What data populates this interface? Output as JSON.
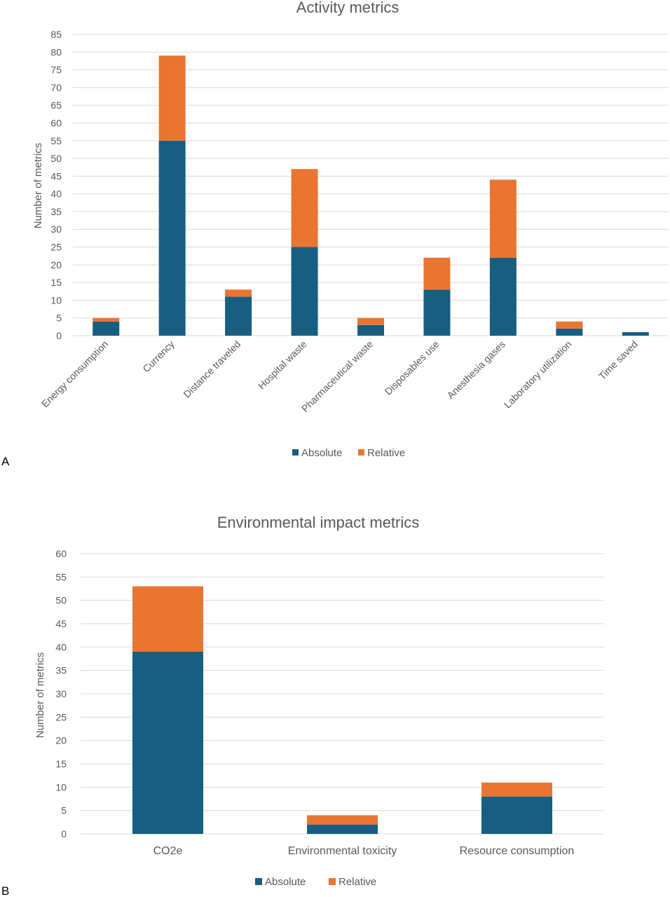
{
  "colors": {
    "absolute": "#175e80",
    "relative": "#e97532"
  },
  "chart_data": [
    {
      "type": "bar",
      "stacked": true,
      "panel": "A",
      "title": "Activity metrics",
      "xlabel": "",
      "ylabel": "Number of metrics",
      "ylim": [
        0,
        85
      ],
      "ytick_step": 5,
      "categories": [
        "Energy consumption",
        "Currency",
        "Distance traveled",
        "Hospital waste",
        "Pharmaceutical waste",
        "Disposables use",
        "Anesthesia gases",
        "Laboratory utilization",
        "Time saved"
      ],
      "series": [
        {
          "name": "Absolute",
          "values": [
            4,
            55,
            11,
            25,
            3,
            13,
            22,
            2,
            1
          ]
        },
        {
          "name": "Relative",
          "values": [
            1,
            24,
            2,
            22,
            2,
            9,
            22,
            2,
            0
          ]
        }
      ],
      "grid": true,
      "legend": "bottom"
    },
    {
      "type": "bar",
      "stacked": true,
      "panel": "B",
      "title": "Environmental impact metrics",
      "xlabel": "",
      "ylabel": "Number of metrics",
      "ylim": [
        0,
        60
      ],
      "ytick_step": 5,
      "categories": [
        "CO2e",
        "Environmental toxicity",
        "Resource consumption"
      ],
      "series": [
        {
          "name": "Absolute",
          "values": [
            39,
            2,
            8
          ]
        },
        {
          "name": "Relative",
          "values": [
            14,
            2,
            3
          ]
        }
      ],
      "grid": true,
      "legend": "bottom"
    }
  ]
}
